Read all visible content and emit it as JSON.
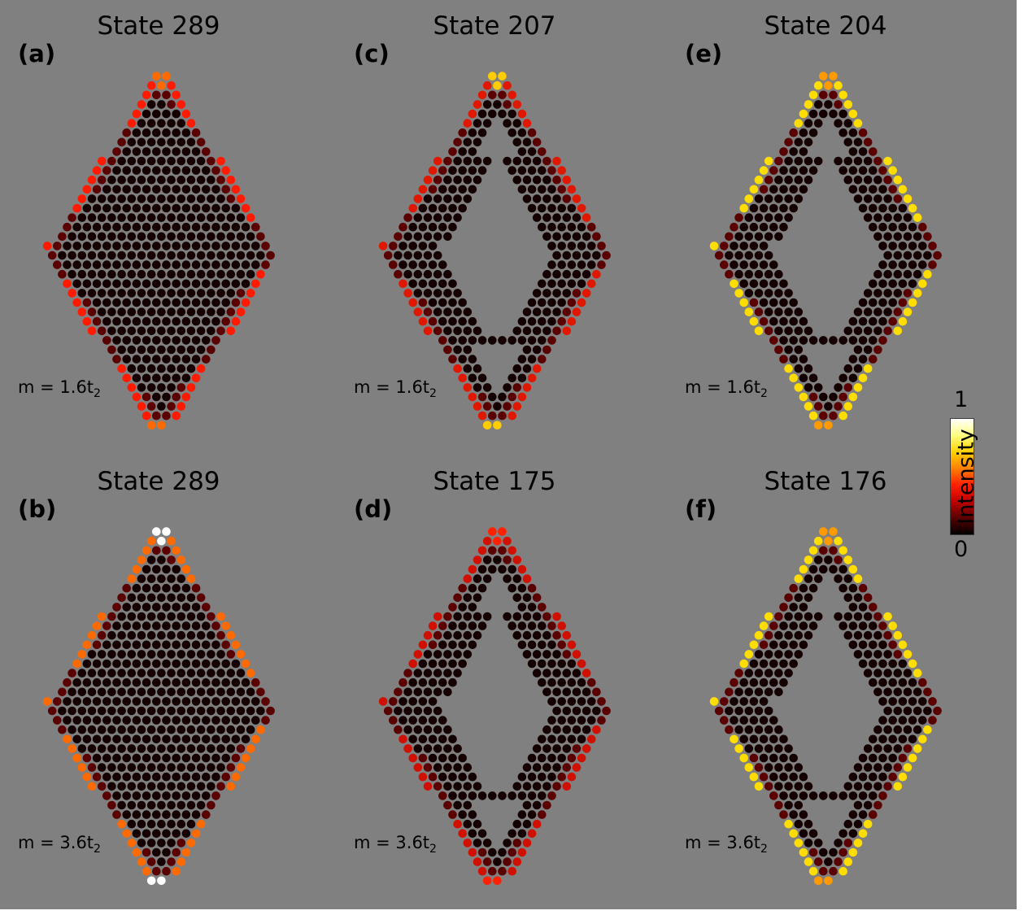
{
  "panels": [
    {
      "label": "(a)",
      "title": "State 289",
      "mass_prefix": "m = 1.6t",
      "mass_sub": "2",
      "kind": "filled",
      "edge": "#ff1a00",
      "tip": "#fff0a0",
      "tip2": "#ff6a00"
    },
    {
      "label": "(b)",
      "title": "State 289",
      "mass_prefix": "m = 3.6t",
      "mass_sub": "2",
      "kind": "filled",
      "edge": "#ff6a00",
      "tip": "#ffee00",
      "tip2": "#ffffff"
    },
    {
      "label": "(c)",
      "title": "State 207",
      "mass_prefix": "m = 1.6t",
      "mass_sub": "2",
      "kind": "fractal",
      "edge": "#e01800",
      "tip": "#ffffff",
      "tip2": "#ffcc00"
    },
    {
      "label": "(d)",
      "title": "State 175",
      "mass_prefix": "m = 3.6t",
      "mass_sub": "2",
      "kind": "fractal",
      "edge": "#d01000",
      "tip": "#ffffff",
      "tip2": "#ff2000"
    },
    {
      "label": "(e)",
      "title": "State 204",
      "mass_prefix": "m = 1.6t",
      "mass_sub": "2",
      "kind": "fractal",
      "edge": "#ffdd00",
      "tip": "#ffffff",
      "tip2": "#ff9900"
    },
    {
      "label": "(f)",
      "title": "State 176",
      "mass_prefix": "m = 3.6t",
      "mass_sub": "2",
      "kind": "fractal",
      "edge": "#ffdd00",
      "tip": "#ffffff",
      "tip2": "#ff9900"
    }
  ],
  "colorbar": {
    "label": "Intensity",
    "max": "1",
    "min": "0",
    "stops": [
      "#000000",
      "#5a0000",
      "#c00000",
      "#ff2000",
      "#ff8000",
      "#ffd000",
      "#ffff80",
      "#ffffff"
    ]
  },
  "colors": {
    "background": "#808080",
    "site_dark": "#140000"
  }
}
